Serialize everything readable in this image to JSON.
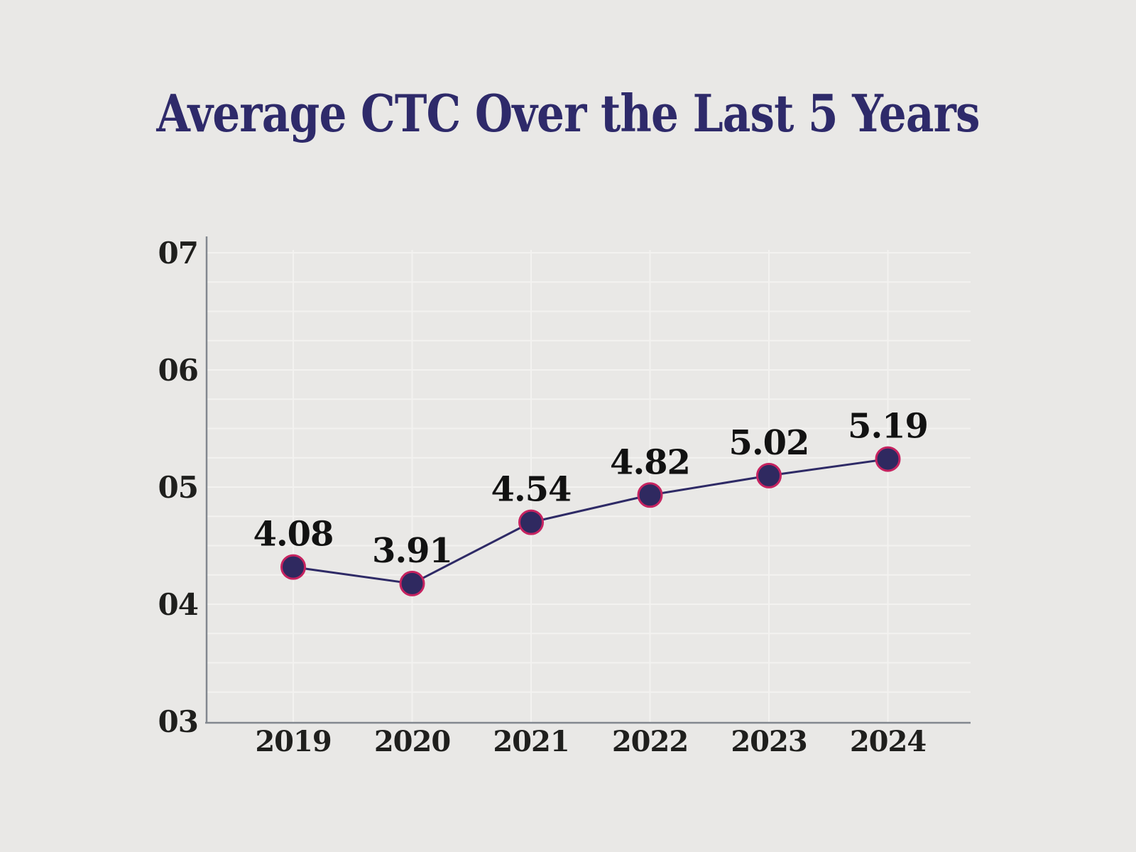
{
  "title": "Average CTC Over the Last 5 Years",
  "chart_data": {
    "type": "line",
    "title": "Average CTC Over the Last 5 Years",
    "categories": [
      "2019",
      "2020",
      "2021",
      "2022",
      "2023",
      "2024"
    ],
    "series": [
      {
        "name": "Average CTC",
        "values": [
          4.08,
          3.91,
          4.54,
          4.82,
          5.02,
          5.19
        ]
      }
    ],
    "data_labels": [
      "4.08",
      "3.91",
      "4.54",
      "4.82",
      "5.02",
      "5.19"
    ],
    "xlabel": "",
    "ylabel": "",
    "ylim": [
      3,
      7
    ],
    "y_tick_labels": [
      "03",
      "04",
      "05",
      "06",
      "07"
    ],
    "y_major_interval": 1,
    "y_minor_grid_interval": 0.25,
    "grid": "on",
    "legend": "none",
    "colors": {
      "background": "#e9e8e6",
      "title": "#2e2a6a",
      "line": "#2e2a66",
      "marker_fill": "#2f2960",
      "marker_stroke": "#c62360",
      "data_label": "#121212",
      "tick_label": "#1f1f1d",
      "axis": "#82878f",
      "gridline": "#f3f2f0"
    }
  }
}
